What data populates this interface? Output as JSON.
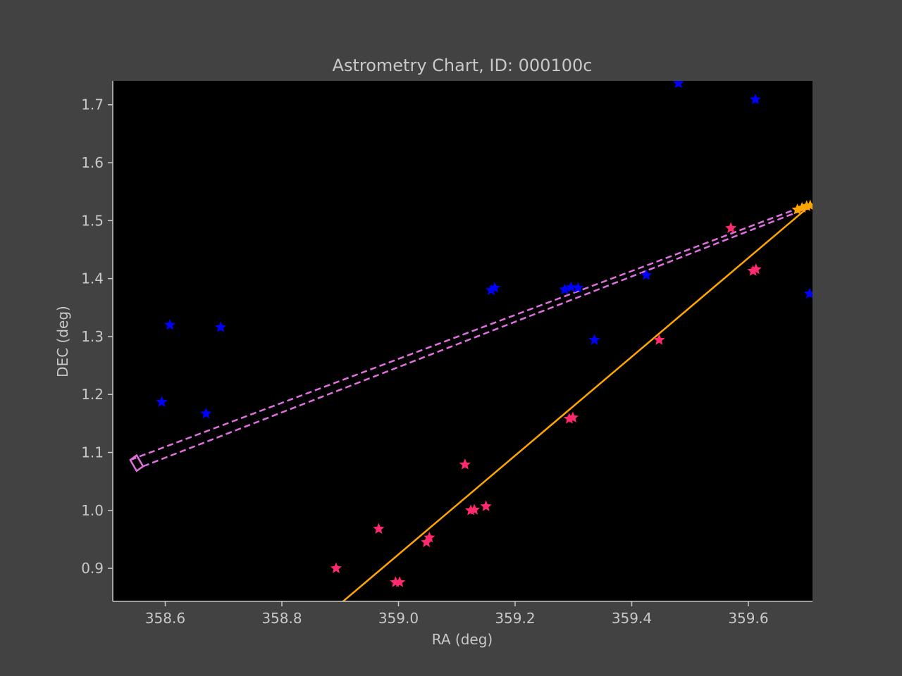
{
  "chart_data": {
    "type": "scatter",
    "title": "Astrometry Chart, ID: 000100c",
    "xlabel": "RA (deg)",
    "ylabel": "DEC (deg)",
    "xlim": [
      358.51,
      359.71
    ],
    "ylim": [
      0.843,
      1.741
    ],
    "xticks": [
      "358.6",
      "358.8",
      "359.0",
      "359.2",
      "359.4",
      "359.6"
    ],
    "yticks": [
      "0.9",
      "1.0",
      "1.1",
      "1.2",
      "1.3",
      "1.4",
      "1.5",
      "1.6",
      "1.7"
    ],
    "grid": false,
    "colors": {
      "page_bg": "#424242",
      "plot_bg": "#000000",
      "axis": "#c8c8c8",
      "blue_stars": "#0000ff",
      "pink_stars": "#ff2a6d",
      "orange_line": "#ffa500",
      "dashed_line": "#e070e0"
    },
    "series": [
      {
        "marker": "star",
        "color": "#0000ff",
        "points": [
          [
            358.594,
            1.187
          ],
          [
            358.608,
            1.32
          ],
          [
            358.67,
            1.167
          ],
          [
            358.695,
            1.316
          ],
          [
            359.159,
            1.38
          ],
          [
            359.165,
            1.384
          ],
          [
            359.285,
            1.381
          ],
          [
            359.296,
            1.385
          ],
          [
            359.308,
            1.384
          ],
          [
            359.336,
            1.294
          ],
          [
            359.425,
            1.406
          ],
          [
            359.48,
            1.737
          ],
          [
            359.612,
            1.709
          ],
          [
            359.705,
            1.374
          ]
        ]
      },
      {
        "marker": "star",
        "color": "#ff2a6d",
        "points": [
          [
            358.893,
            0.9
          ],
          [
            358.966,
            0.968
          ],
          [
            358.995,
            0.876
          ],
          [
            359.002,
            0.876
          ],
          [
            359.048,
            0.945
          ],
          [
            359.053,
            0.953
          ],
          [
            359.114,
            1.079
          ],
          [
            359.124,
            1.0
          ],
          [
            359.13,
            1.001
          ],
          [
            359.15,
            1.007
          ],
          [
            359.293,
            1.158
          ],
          [
            359.299,
            1.16
          ],
          [
            359.447,
            1.294
          ],
          [
            359.57,
            1.487
          ],
          [
            359.608,
            1.413
          ],
          [
            359.613,
            1.416
          ]
        ]
      },
      {
        "marker": "star",
        "color": "#ffa500",
        "points": [
          [
            359.684,
            1.519
          ],
          [
            359.692,
            1.522
          ],
          [
            359.7,
            1.525
          ],
          [
            359.706,
            1.526
          ]
        ]
      },
      {
        "marker": "line",
        "color": "#ffa500",
        "points": [
          [
            358.905,
            0.843
          ],
          [
            359.706,
            1.526
          ]
        ]
      },
      {
        "marker": "dashed-line",
        "color": "#e070e0",
        "points": [
          [
            358.54,
            1.087
          ],
          [
            359.69,
            1.523
          ]
        ]
      },
      {
        "marker": "dashed-line",
        "color": "#e070e0",
        "points": [
          [
            358.562,
            1.076
          ],
          [
            359.7,
            1.521
          ]
        ]
      },
      {
        "marker": "rectangle",
        "color": "#e070e0",
        "points": [
          [
            358.54,
            1.087
          ],
          [
            358.551,
            1.095
          ],
          [
            358.562,
            1.076
          ],
          [
            358.551,
            1.068
          ]
        ]
      }
    ]
  }
}
